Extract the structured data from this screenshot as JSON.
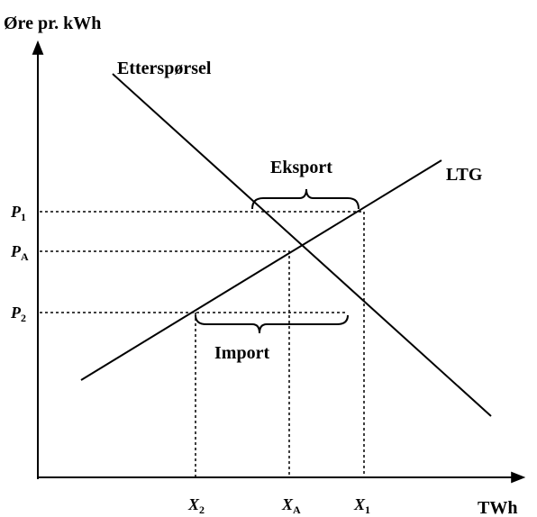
{
  "axes": {
    "y_label": "Øre pr. kWh",
    "x_label": "TWh"
  },
  "curves": {
    "demand": "Etterspørsel",
    "supply": "LTG"
  },
  "annotations": {
    "export": "Eksport",
    "import": "Import"
  },
  "price_labels": [
    {
      "symbol": "P",
      "subscript": "1"
    },
    {
      "symbol": "P",
      "subscript": "A"
    },
    {
      "symbol": "P",
      "subscript": "2"
    }
  ],
  "quantity_labels": [
    {
      "symbol": "X",
      "subscript": "2"
    },
    {
      "symbol": "X",
      "subscript": "A"
    },
    {
      "symbol": "X",
      "subscript": "1"
    }
  ]
}
